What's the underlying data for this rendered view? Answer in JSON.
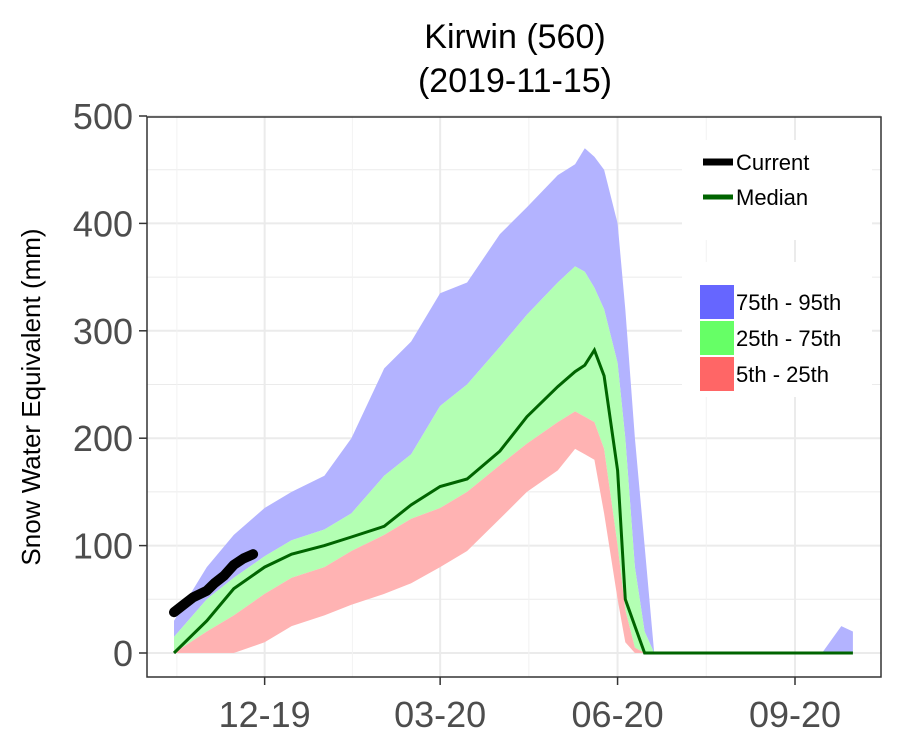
{
  "chart_data": {
    "type": "area",
    "title": "Kirwin (560)",
    "subtitle": "(2019-11-15)",
    "xlabel": "",
    "ylabel": "Snow Water Equivalent (mm)",
    "ylim": [
      0,
      500
    ],
    "y_ticks": [
      "0",
      "100",
      "200",
      "300",
      "400",
      "500"
    ],
    "x_ticks": [
      "12-19",
      "03-20",
      "06-20",
      "09-20"
    ],
    "grid": true,
    "legend_position": "top-right",
    "colors": {
      "p75_95": "#b3b3ff",
      "p25_75": "#b3ffb3",
      "p5_25": "#ffb3b3",
      "median": "#006400",
      "current": "#000000",
      "legend_p75_95": "#6666ff",
      "legend_p25_75": "#66ff66",
      "legend_p5_25": "#ff6666"
    },
    "legend_lines": [
      {
        "key": "current",
        "label": "Current"
      },
      {
        "key": "median",
        "label": "Median"
      }
    ],
    "legend_bands": [
      {
        "key": "legend_p75_95",
        "label": "75th - 95th"
      },
      {
        "key": "legend_p25_75",
        "label": "25th - 75th"
      },
      {
        "key": "legend_p5_25",
        "label": "5th - 25th"
      }
    ],
    "dates": [
      "2019-10-15",
      "2019-11-01",
      "2019-11-15",
      "2019-12-01",
      "2019-12-15",
      "2020-01-01",
      "2020-01-15",
      "2020-02-01",
      "2020-02-15",
      "2020-03-01",
      "2020-03-15",
      "2020-04-01",
      "2020-04-15",
      "2020-05-01",
      "2020-05-10",
      "2020-05-15",
      "2020-05-20",
      "2020-05-25",
      "2020-06-01",
      "2020-06-05",
      "2020-06-10",
      "2020-06-15",
      "2020-06-20",
      "2020-06-25",
      "2020-07-01",
      "2020-07-15",
      "2020-08-01",
      "2020-08-15",
      "2020-09-01",
      "2020-09-15",
      "2020-09-25",
      "2020-10-01"
    ],
    "p95": [
      30,
      80,
      110,
      135,
      150,
      165,
      200,
      265,
      290,
      335,
      345,
      390,
      415,
      445,
      455,
      470,
      462,
      450,
      400,
      320,
      200,
      100,
      0,
      0,
      0,
      0,
      0,
      0,
      0,
      0,
      25,
      20
    ],
    "p75": [
      15,
      50,
      70,
      90,
      105,
      115,
      130,
      165,
      185,
      230,
      250,
      285,
      315,
      345,
      360,
      355,
      340,
      320,
      270,
      200,
      80,
      20,
      0,
      0,
      0,
      0,
      0,
      0,
      0,
      0,
      0,
      0
    ],
    "p25": [
      0,
      20,
      35,
      55,
      70,
      80,
      95,
      110,
      125,
      135,
      150,
      175,
      195,
      215,
      225,
      220,
      215,
      190,
      100,
      40,
      5,
      0,
      0,
      0,
      0,
      0,
      0,
      0,
      0,
      0,
      0,
      0
    ],
    "p5": [
      0,
      0,
      0,
      10,
      25,
      35,
      45,
      55,
      65,
      80,
      95,
      125,
      150,
      170,
      190,
      185,
      180,
      130,
      50,
      10,
      0,
      0,
      0,
      0,
      0,
      0,
      0,
      0,
      0,
      0,
      0,
      0
    ],
    "median": [
      0,
      30,
      60,
      80,
      92,
      100,
      108,
      118,
      138,
      155,
      162,
      188,
      220,
      248,
      262,
      268,
      282,
      258,
      170,
      50,
      25,
      0,
      0,
      0,
      0,
      0,
      0,
      0,
      0,
      0,
      0,
      0
    ],
    "current_dates": [
      "2019-10-15",
      "2019-10-20",
      "2019-10-25",
      "2019-11-01",
      "2019-11-05",
      "2019-11-10",
      "2019-11-15",
      "2019-11-20",
      "2019-11-25"
    ],
    "current": [
      38,
      45,
      52,
      58,
      65,
      72,
      82,
      88,
      92
    ]
  }
}
